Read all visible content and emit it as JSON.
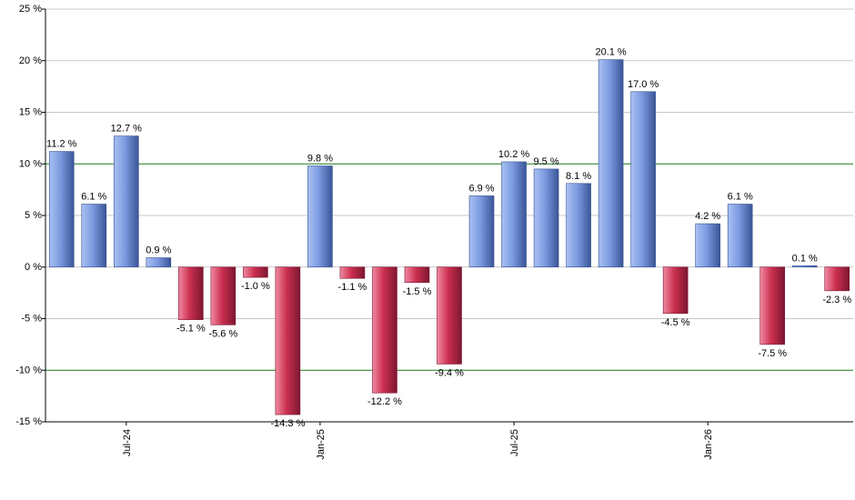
{
  "chart_data": {
    "type": "bar",
    "title": "",
    "xlabel": "",
    "ylabel": "",
    "ylim": [
      -15,
      25
    ],
    "y_ticks": [
      25,
      20,
      15,
      10,
      5,
      0,
      -5,
      -10,
      -15
    ],
    "y_tick_labels": [
      "25 %",
      "20 %",
      "15 %",
      "10 %",
      "5 %",
      "0 %",
      "-5 %",
      "-10 %",
      "-15 %"
    ],
    "reference_lines": [
      10,
      -10
    ],
    "reference_line_color": "#1a7a1a",
    "grid": true,
    "legend": "none",
    "positive_color": "#7a9be0",
    "negative_color": "#c0294a",
    "values": [
      11.2,
      6.1,
      12.7,
      0.9,
      -5.1,
      -5.6,
      -1.0,
      -14.3,
      9.8,
      -1.1,
      -12.2,
      -1.5,
      -9.4,
      6.9,
      10.2,
      9.5,
      8.1,
      20.1,
      17.0,
      -4.5,
      4.2,
      6.1,
      -7.5,
      0.1,
      -2.3
    ],
    "value_labels": [
      "11.2 %",
      "6.1 %",
      "12.7 %",
      "0.9 %",
      "-5.1 %",
      "-5.6 %",
      "-1.0 %",
      "-14.3 %",
      "9.8 %",
      "-1.1 %",
      "-12.2 %",
      "-1.5 %",
      "-9.4 %",
      "6.9 %",
      "10.2 %",
      "9.5 %",
      "8.1 %",
      "20.1 %",
      "17.0 %",
      "-4.5 %",
      "4.2 %",
      "6.1 %",
      "-7.5 %",
      "0.1 %",
      "-2.3 %"
    ],
    "x_tick_labels": [
      {
        "label": "Jul-24",
        "bar_index": 2
      },
      {
        "label": "Jan-25",
        "bar_index": 8
      },
      {
        "label": "Jul-25",
        "bar_index": 14
      },
      {
        "label": "Jan-26",
        "bar_index": 20
      }
    ]
  }
}
